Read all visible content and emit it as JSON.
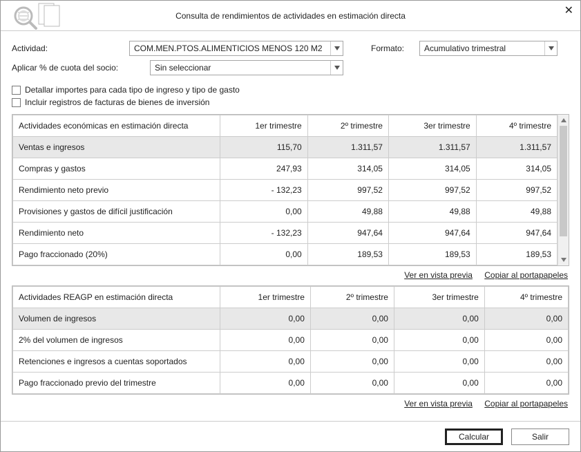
{
  "window": {
    "title": "Consulta de rendimientos de actividades en estimación directa"
  },
  "form": {
    "actividad_label": "Actividad:",
    "actividad_value": "COM.MEN.PTOS.ALIMENTICIOS MENOS 120 M2",
    "formato_label": "Formato:",
    "formato_value": "Acumulativo trimestral",
    "cuota_label": "Aplicar % de cuota del socio:",
    "cuota_value": "Sin seleccionar",
    "cb1_label": "Detallar importes para cada tipo de ingreso y tipo de gasto",
    "cb2_label": "Incluir registros de facturas de bienes de inversión"
  },
  "table1": {
    "col0": "Actividades económicas en estimación directa",
    "col1": "1er trimestre",
    "col2": "2º trimestre",
    "col3": "3er trimestre",
    "col4": "4º trimestre",
    "rows": [
      {
        "label": "Ventas e ingresos",
        "v1": "115,70",
        "v2": "1.311,57",
        "v3": "1.311,57",
        "v4": "1.311,57",
        "hl": true
      },
      {
        "label": "Compras y gastos",
        "v1": "247,93",
        "v2": "314,05",
        "v3": "314,05",
        "v4": "314,05"
      },
      {
        "label": "Rendimiento neto previo",
        "v1": "- 132,23",
        "v2": "997,52",
        "v3": "997,52",
        "v4": "997,52"
      },
      {
        "label": "Provisiones y gastos de difícil justificación",
        "v1": "0,00",
        "v2": "49,88",
        "v3": "49,88",
        "v4": "49,88"
      },
      {
        "label": "Rendimiento neto",
        "v1": "- 132,23",
        "v2": "947,64",
        "v3": "947,64",
        "v4": "947,64"
      },
      {
        "label": "Pago fraccionado (20%)",
        "v1": "0,00",
        "v2": "189,53",
        "v3": "189,53",
        "v4": "189,53"
      }
    ]
  },
  "table2": {
    "col0": "Actividades REAGP en estimación directa",
    "col1": "1er trimestre",
    "col2": "2º trimestre",
    "col3": "3er trimestre",
    "col4": "4º trimestre",
    "rows": [
      {
        "label": "Volumen de ingresos",
        "v1": "0,00",
        "v2": "0,00",
        "v3": "0,00",
        "v4": "0,00",
        "hl": true
      },
      {
        "label": "2% del volumen de ingresos",
        "v1": "0,00",
        "v2": "0,00",
        "v3": "0,00",
        "v4": "0,00"
      },
      {
        "label": "Retenciones e ingresos a cuentas soportados",
        "v1": "0,00",
        "v2": "0,00",
        "v3": "0,00",
        "v4": "0,00"
      },
      {
        "label": "Pago fraccionado previo del trimestre",
        "v1": "0,00",
        "v2": "0,00",
        "v3": "0,00",
        "v4": "0,00"
      }
    ]
  },
  "links": {
    "preview": "Ver en vista previa",
    "copy": "Copiar al portapapeles"
  },
  "buttons": {
    "calc": "Calcular",
    "exit": "Salir"
  }
}
